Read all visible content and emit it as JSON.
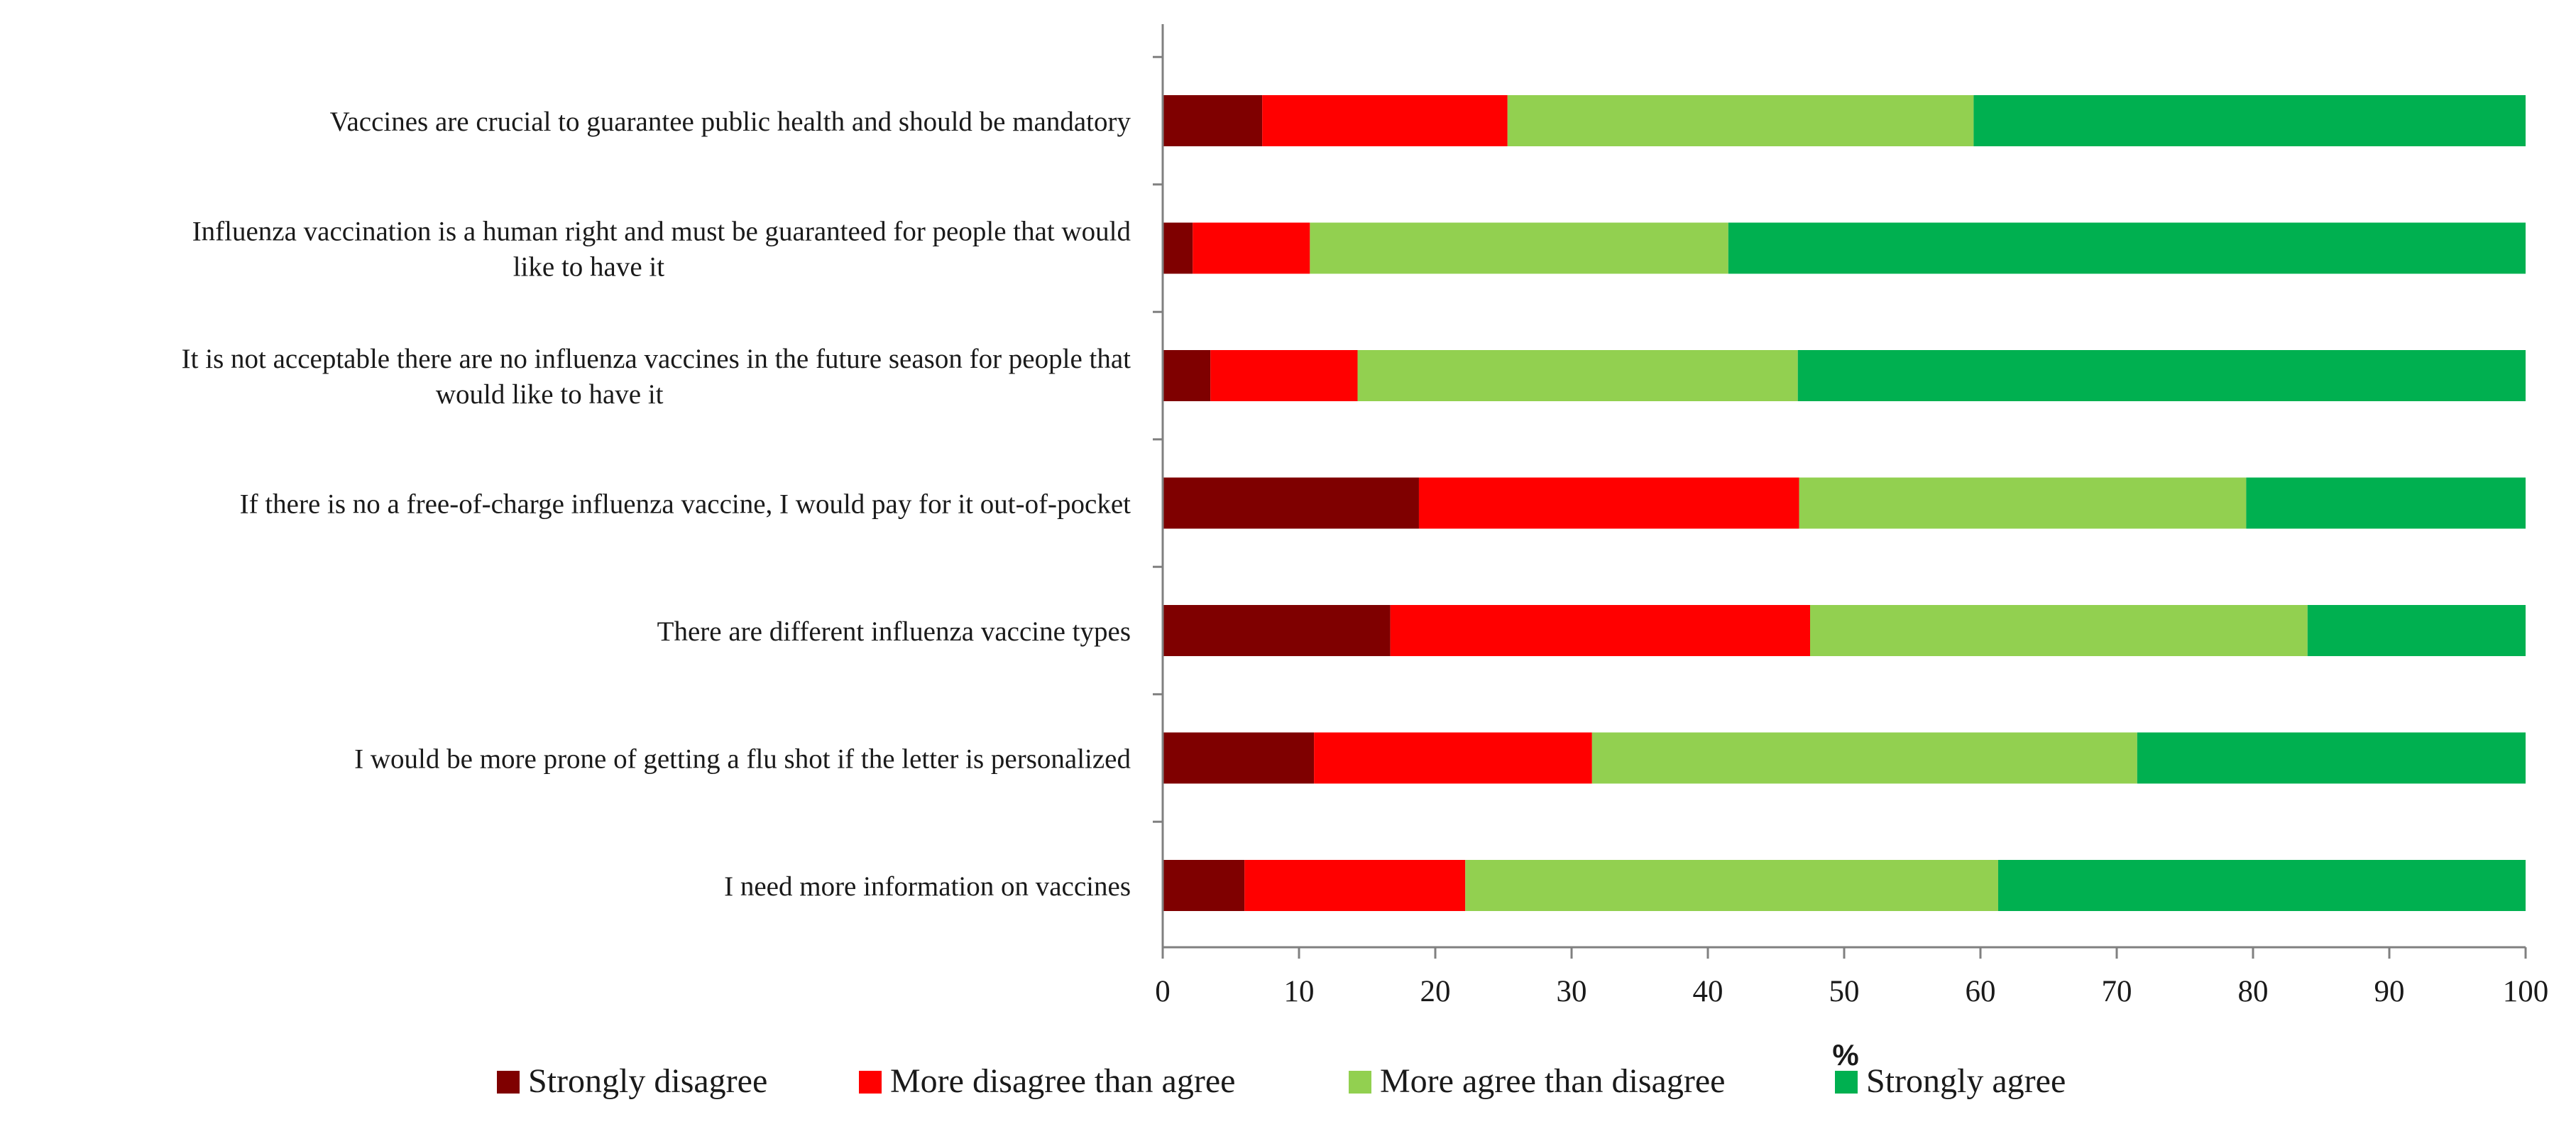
{
  "chart_data": {
    "type": "bar",
    "orientation": "horizontal",
    "stacked": true,
    "title": "",
    "xlabel": "%",
    "ylabel": "",
    "xlim": [
      0,
      100
    ],
    "xticks": [
      0,
      10,
      20,
      30,
      40,
      50,
      60,
      70,
      80,
      90,
      100
    ],
    "grid": false,
    "legend_position": "bottom",
    "categories": [
      [
        "Vaccines are crucial to guarantee public health and should be mandatory"
      ],
      [
        "Influenza vaccination is a human right and must be guaranteed for people that would",
        "like to have it"
      ],
      [
        "It is not acceptable there are no influenza vaccines in the future season for people that",
        "would like to have it"
      ],
      [
        "If there is no a free-of-charge influenza vaccine, I would pay for it out-of-pocket"
      ],
      [
        "There are different influenza vaccine types"
      ],
      [
        "I would be more prone of getting a flu shot if the letter is personalized"
      ],
      [
        "I need more information on vaccines"
      ]
    ],
    "series": [
      {
        "name": "Strongly disagree",
        "color": "#7F0000",
        "values": [
          7.3,
          2.2,
          3.5,
          18.8,
          16.7,
          11.1,
          6.0
        ]
      },
      {
        "name": "More disagree than agree",
        "color": "#FF0000",
        "values": [
          18.0,
          8.6,
          10.8,
          27.9,
          30.8,
          20.4,
          16.2
        ]
      },
      {
        "name": "More agree than disagree",
        "color": "#92D050",
        "values": [
          34.2,
          30.7,
          32.3,
          32.8,
          36.5,
          40.0,
          39.1
        ]
      },
      {
        "name": "Strongly agree",
        "color": "#00B050",
        "values": [
          40.5,
          58.5,
          53.4,
          20.5,
          16.0,
          28.5,
          38.7
        ]
      }
    ]
  }
}
